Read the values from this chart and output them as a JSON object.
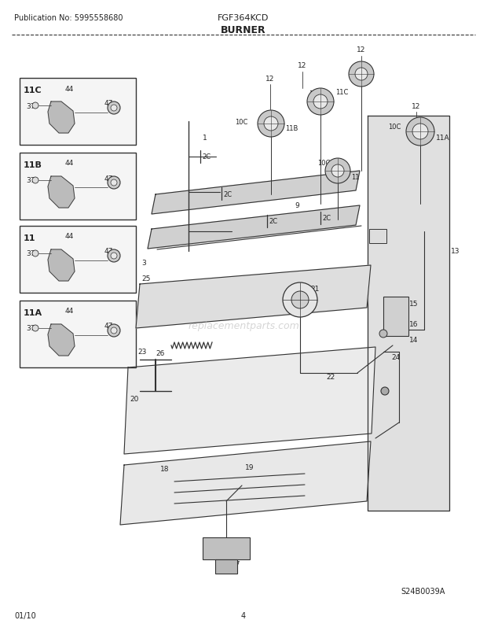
{
  "title": "BURNER",
  "pub_no": "Publication No: 5995558680",
  "model": "FGF364KCD",
  "date": "01/10",
  "page": "4",
  "watermark": "S24B0039A",
  "bg_color": "#ffffff",
  "line_color": "#333333",
  "text_color": "#222222",
  "box_labels": [
    "11C",
    "11B",
    "11",
    "11A"
  ],
  "figsize": [
    6.2,
    8.03
  ],
  "dpi": 100
}
